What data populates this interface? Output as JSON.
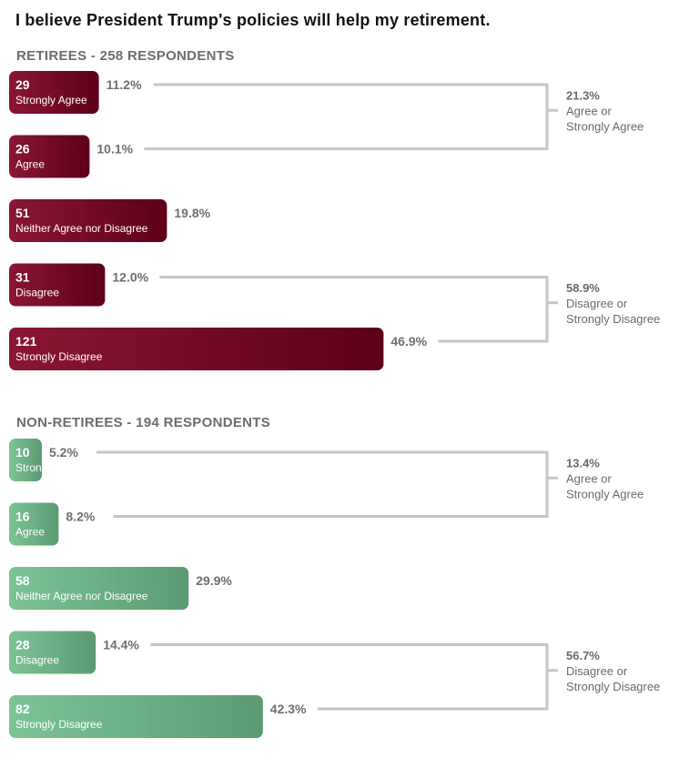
{
  "title": "I believe President Trump's policies will help my retirement.",
  "colors": {
    "retirees_dark": "#5e0018",
    "retirees_light": "#8a1632",
    "nonretirees_dark": "#5b9a72",
    "nonretirees_light": "#7cc497",
    "bracket": "#c6c6c6",
    "text_gray": "#6f6f6f"
  },
  "chart_data": [
    {
      "type": "bar",
      "title": "RETIREES - 258 RESPONDENTS",
      "respondents": 258,
      "color_theme": "retirees",
      "bars": [
        {
          "label": "Strongly Agree",
          "count": 29,
          "percent": "11.2%"
        },
        {
          "label": "Agree",
          "count": 26,
          "percent": "10.1%"
        },
        {
          "label": "Neither Agree nor Disagree",
          "count": 51,
          "percent": "19.8%"
        },
        {
          "label": "Disagree",
          "count": 31,
          "percent": "12.0%"
        },
        {
          "label": "Strongly Disagree",
          "count": 121,
          "percent": "46.9%"
        }
      ],
      "summaries": [
        {
          "rows": [
            0,
            1
          ],
          "percent": "21.3%",
          "label_lines": [
            "Agree or",
            "Strongly Agree"
          ]
        },
        {
          "rows": [
            3,
            4
          ],
          "percent": "58.9%",
          "label_lines": [
            "Disagree or",
            "Strongly Disagree"
          ]
        }
      ]
    },
    {
      "type": "bar",
      "title": "NON-RETIREES - 194 RESPONDENTS",
      "respondents": 194,
      "color_theme": "nonretirees",
      "bars": [
        {
          "label": "Strongly Agree",
          "count": 10,
          "percent": "5.2%"
        },
        {
          "label": "Agree",
          "count": 16,
          "percent": "8.2%"
        },
        {
          "label": "Neither Agree nor Disagree",
          "count": 58,
          "percent": "29.9%"
        },
        {
          "label": "Disagree",
          "count": 28,
          "percent": "14.4%"
        },
        {
          "label": "Strongly Disagree",
          "count": 82,
          "percent": "42.3%"
        }
      ],
      "summaries": [
        {
          "rows": [
            0,
            1
          ],
          "percent": "13.4%",
          "label_lines": [
            "Agree or",
            "Strongly Agree"
          ]
        },
        {
          "rows": [
            3,
            4
          ],
          "percent": "56.7%",
          "label_lines": [
            "Disagree or",
            "Strongly Disagree"
          ]
        }
      ]
    }
  ]
}
